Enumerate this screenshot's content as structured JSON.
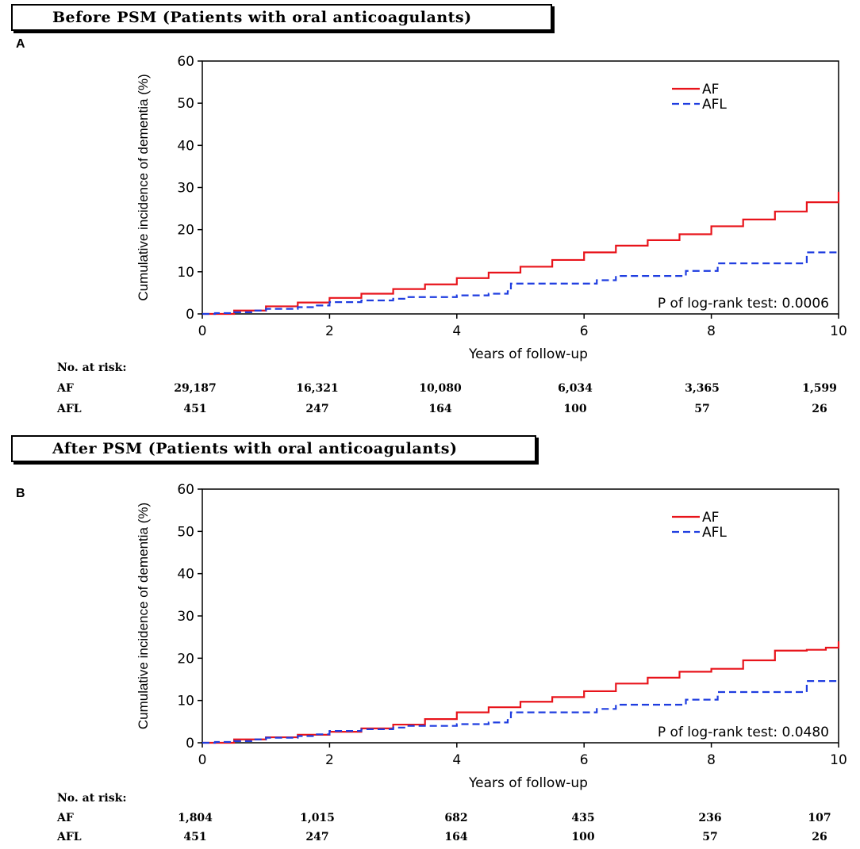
{
  "chart_data": [
    {
      "type": "line",
      "panel": "A",
      "title": "Before PSM (Patients with oral anticoagulants)",
      "xlabel": "Years of follow-up",
      "ylabel": "Cumulative incidence of dementia (%)",
      "xlim": [
        0,
        10
      ],
      "ylim": [
        0,
        60
      ],
      "xticks": [
        "0",
        "2",
        "4",
        "6",
        "8",
        "10"
      ],
      "yticks": [
        "0",
        "10",
        "20",
        "30",
        "40",
        "50",
        "60"
      ],
      "legend_position": "top-right",
      "annotation": "P of log-rank test: 0.0006",
      "series": [
        {
          "name": "AF",
          "color": "#e8141b",
          "style": "solid",
          "x": [
            0,
            0.5,
            1,
            1.5,
            2,
            2.5,
            3,
            3.5,
            4,
            4.5,
            5,
            5.5,
            6,
            6.5,
            7,
            7.5,
            8,
            8.5,
            9,
            9.5,
            10
          ],
          "y": [
            0,
            0.8,
            1.8,
            2.7,
            3.8,
            4.8,
            5.9,
            7.0,
            8.5,
            9.8,
            11.2,
            12.8,
            14.6,
            16.2,
            17.5,
            18.9,
            20.8,
            22.4,
            24.3,
            26.5,
            29.0
          ]
        },
        {
          "name": "AFL",
          "color": "#1f3de0",
          "style": "dashed",
          "x": [
            0,
            0.2,
            0.5,
            0.8,
            1.0,
            1.5,
            1.8,
            2.0,
            2.5,
            3.0,
            3.2,
            4.0,
            4.5,
            4.8,
            4.85,
            5.5,
            6.0,
            6.2,
            6.5,
            7.0,
            7.6,
            8.0,
            8.1,
            9.0,
            9.5,
            10.0
          ],
          "y": [
            0,
            0.2,
            0.4,
            0.8,
            1.2,
            1.6,
            2.0,
            2.8,
            3.2,
            3.6,
            4.0,
            4.4,
            4.8,
            5.4,
            7.2,
            7.2,
            7.2,
            8.0,
            9.0,
            9.0,
            10.2,
            10.2,
            12.0,
            12.0,
            14.6,
            14.6
          ]
        }
      ],
      "risk_table": {
        "header": "No. at risk:",
        "rows": [
          {
            "label": "AF",
            "values": [
              "29,187",
              "16,321",
              "10,080",
              "6,034",
              "3,365",
              "1,599"
            ]
          },
          {
            "label": "AFL",
            "values": [
              "451",
              "247",
              "164",
              "100",
              "57",
              "26"
            ]
          }
        ]
      }
    },
    {
      "type": "line",
      "panel": "B",
      "title": "After PSM (Patients with oral anticoagulants)",
      "xlabel": "Years of follow-up",
      "ylabel": "Cumulative incidence of dementia (%)",
      "xlim": [
        0,
        10
      ],
      "ylim": [
        0,
        60
      ],
      "xticks": [
        "0",
        "2",
        "4",
        "6",
        "8",
        "10"
      ],
      "yticks": [
        "0",
        "10",
        "20",
        "30",
        "40",
        "50",
        "60"
      ],
      "legend_position": "top-right",
      "annotation": "P of log-rank test: 0.0480",
      "series": [
        {
          "name": "AF",
          "color": "#e8141b",
          "style": "solid",
          "x": [
            0,
            0.5,
            1,
            1.5,
            2,
            2.5,
            3,
            3.5,
            4,
            4.5,
            5,
            5.5,
            6,
            6.5,
            7,
            7.5,
            8,
            8.5,
            9,
            9.5,
            9.8,
            10
          ],
          "y": [
            0,
            0.8,
            1.3,
            1.9,
            2.6,
            3.4,
            4.3,
            5.6,
            7.2,
            8.4,
            9.7,
            10.8,
            12.2,
            14.0,
            15.4,
            16.8,
            17.5,
            19.5,
            21.8,
            22.0,
            22.5,
            24.0
          ]
        },
        {
          "name": "AFL",
          "color": "#1f3de0",
          "style": "dashed",
          "x": [
            0,
            0.2,
            0.5,
            0.8,
            1.0,
            1.5,
            1.8,
            2.0,
            2.5,
            3.0,
            3.2,
            4.0,
            4.5,
            4.8,
            4.85,
            5.5,
            6.0,
            6.2,
            6.5,
            7.0,
            7.6,
            8.0,
            8.1,
            9.0,
            9.5,
            10.0
          ],
          "y": [
            0,
            0.2,
            0.4,
            0.8,
            1.2,
            1.6,
            2.0,
            2.8,
            3.2,
            3.6,
            4.0,
            4.4,
            4.8,
            5.4,
            7.2,
            7.2,
            7.2,
            8.0,
            9.0,
            9.0,
            10.2,
            10.2,
            12.0,
            12.0,
            14.6,
            14.6
          ]
        }
      ],
      "risk_table": {
        "header": "No. at risk:",
        "rows": [
          {
            "label": "AF",
            "values": [
              "1,804",
              "1,015",
              "682",
              "435",
              "236",
              "107"
            ]
          },
          {
            "label": "AFL",
            "values": [
              "451",
              "247",
              "164",
              "100",
              "57",
              "26"
            ]
          }
        ]
      }
    }
  ]
}
